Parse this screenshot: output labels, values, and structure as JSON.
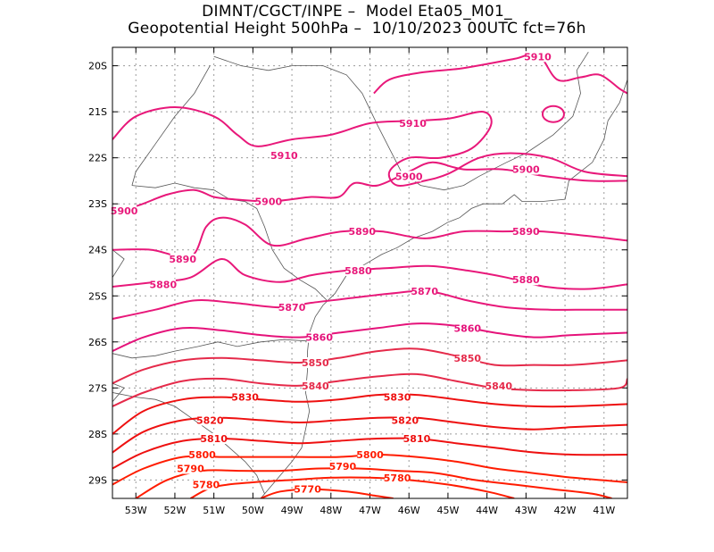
{
  "title": {
    "line1": "DIMNT/CGCT/INPE –  Model Eta05_M01_",
    "line2": "Geopotential Height 500hPa –  10/10/2023 00UTC fct=76h"
  },
  "map": {
    "lat_range": [
      -29.4,
      -19.6
    ],
    "lon_range": [
      -53.6,
      -40.4
    ],
    "lat_ticks": [
      {
        "v": -20,
        "t": "20S"
      },
      {
        "v": -21,
        "t": "21S"
      },
      {
        "v": -22,
        "t": "22S"
      },
      {
        "v": -23,
        "t": "23S"
      },
      {
        "v": -24,
        "t": "24S"
      },
      {
        "v": -25,
        "t": "25S"
      },
      {
        "v": -26,
        "t": "26S"
      },
      {
        "v": -27,
        "t": "27S"
      },
      {
        "v": -28,
        "t": "28S"
      },
      {
        "v": -29,
        "t": "29S"
      }
    ],
    "lon_ticks": [
      {
        "v": -53,
        "t": "53W"
      },
      {
        "v": -52,
        "t": "52W"
      },
      {
        "v": -51,
        "t": "51W"
      },
      {
        "v": -50,
        "t": "50W"
      },
      {
        "v": -49,
        "t": "49W"
      },
      {
        "v": -48,
        "t": "48W"
      },
      {
        "v": -47,
        "t": "47W"
      },
      {
        "v": -46,
        "t": "46W"
      },
      {
        "v": -45,
        "t": "45W"
      },
      {
        "v": -44,
        "t": "44W"
      },
      {
        "v": -43,
        "t": "43W"
      },
      {
        "v": -42,
        "t": "42W"
      },
      {
        "v": -41,
        "t": "41W"
      }
    ],
    "contour_labels": [
      {
        "text": "5910",
        "lon": -49.2,
        "lat": -21.95,
        "color": "#e8187a"
      },
      {
        "text": "5910",
        "lon": -42.7,
        "lat": -19.8,
        "color": "#e8187a"
      },
      {
        "text": "5910",
        "lon": -45.9,
        "lat": -21.25,
        "color": "#e8187a"
      },
      {
        "text": "5900",
        "lon": -46.0,
        "lat": -22.4,
        "color": "#e8187a"
      },
      {
        "text": "5900",
        "lon": -43.0,
        "lat": -22.25,
        "color": "#e8187a"
      },
      {
        "text": "5900",
        "lon": -49.6,
        "lat": -22.95,
        "color": "#e8187a"
      },
      {
        "text": "5900",
        "lon": -53.3,
        "lat": -23.15,
        "color": "#e8187a"
      },
      {
        "text": "5890",
        "lon": -47.2,
        "lat": -23.6,
        "color": "#e8187a"
      },
      {
        "text": "5890",
        "lon": -43.0,
        "lat": -23.6,
        "color": "#e8187a"
      },
      {
        "text": "5890",
        "lon": -51.8,
        "lat": -24.2,
        "color": "#e8187a"
      },
      {
        "text": "5880",
        "lon": -47.3,
        "lat": -24.45,
        "color": "#e8187a"
      },
      {
        "text": "5880",
        "lon": -43.0,
        "lat": -24.65,
        "color": "#e8187a"
      },
      {
        "text": "5880",
        "lon": -52.3,
        "lat": -24.75,
        "color": "#e8187a"
      },
      {
        "text": "5870",
        "lon": -45.6,
        "lat": -24.9,
        "color": "#e8187a"
      },
      {
        "text": "5870",
        "lon": -49.0,
        "lat": -25.25,
        "color": "#e8187a"
      },
      {
        "text": "5860",
        "lon": -44.5,
        "lat": -25.7,
        "color": "#e5127a"
      },
      {
        "text": "5860",
        "lon": -48.3,
        "lat": -25.9,
        "color": "#e5127a"
      },
      {
        "text": "5850",
        "lon": -48.4,
        "lat": -26.45,
        "color": "#e52a4a"
      },
      {
        "text": "5850",
        "lon": -44.5,
        "lat": -26.35,
        "color": "#e52a4a"
      },
      {
        "text": "5840",
        "lon": -48.4,
        "lat": -26.95,
        "color": "#e52a4a"
      },
      {
        "text": "5840",
        "lon": -43.7,
        "lat": -26.95,
        "color": "#e52a4a"
      },
      {
        "text": "5830",
        "lon": -50.2,
        "lat": -27.2,
        "color": "#ee1010"
      },
      {
        "text": "5830",
        "lon": -46.3,
        "lat": -27.2,
        "color": "#ee1010"
      },
      {
        "text": "5820",
        "lon": -51.1,
        "lat": -27.7,
        "color": "#ee1010"
      },
      {
        "text": "5820",
        "lon": -46.1,
        "lat": -27.7,
        "color": "#ee1010"
      },
      {
        "text": "5810",
        "lon": -51.0,
        "lat": -28.1,
        "color": "#ee1010"
      },
      {
        "text": "5810",
        "lon": -45.8,
        "lat": -28.1,
        "color": "#ee1010"
      },
      {
        "text": "5800",
        "lon": -51.3,
        "lat": -28.45,
        "color": "#ff1c00"
      },
      {
        "text": "5800",
        "lon": -47.0,
        "lat": -28.45,
        "color": "#ff1c00"
      },
      {
        "text": "5790",
        "lon": -51.6,
        "lat": -28.75,
        "color": "#ff1c00"
      },
      {
        "text": "5790",
        "lon": -47.7,
        "lat": -28.7,
        "color": "#ff1c00"
      },
      {
        "text": "5780",
        "lon": -51.2,
        "lat": -29.1,
        "color": "#ff1c00"
      },
      {
        "text": "5780",
        "lon": -46.3,
        "lat": -28.95,
        "color": "#ff1c00"
      },
      {
        "text": "5770",
        "lon": -48.6,
        "lat": -29.2,
        "color": "#ff1c00"
      }
    ]
  }
}
